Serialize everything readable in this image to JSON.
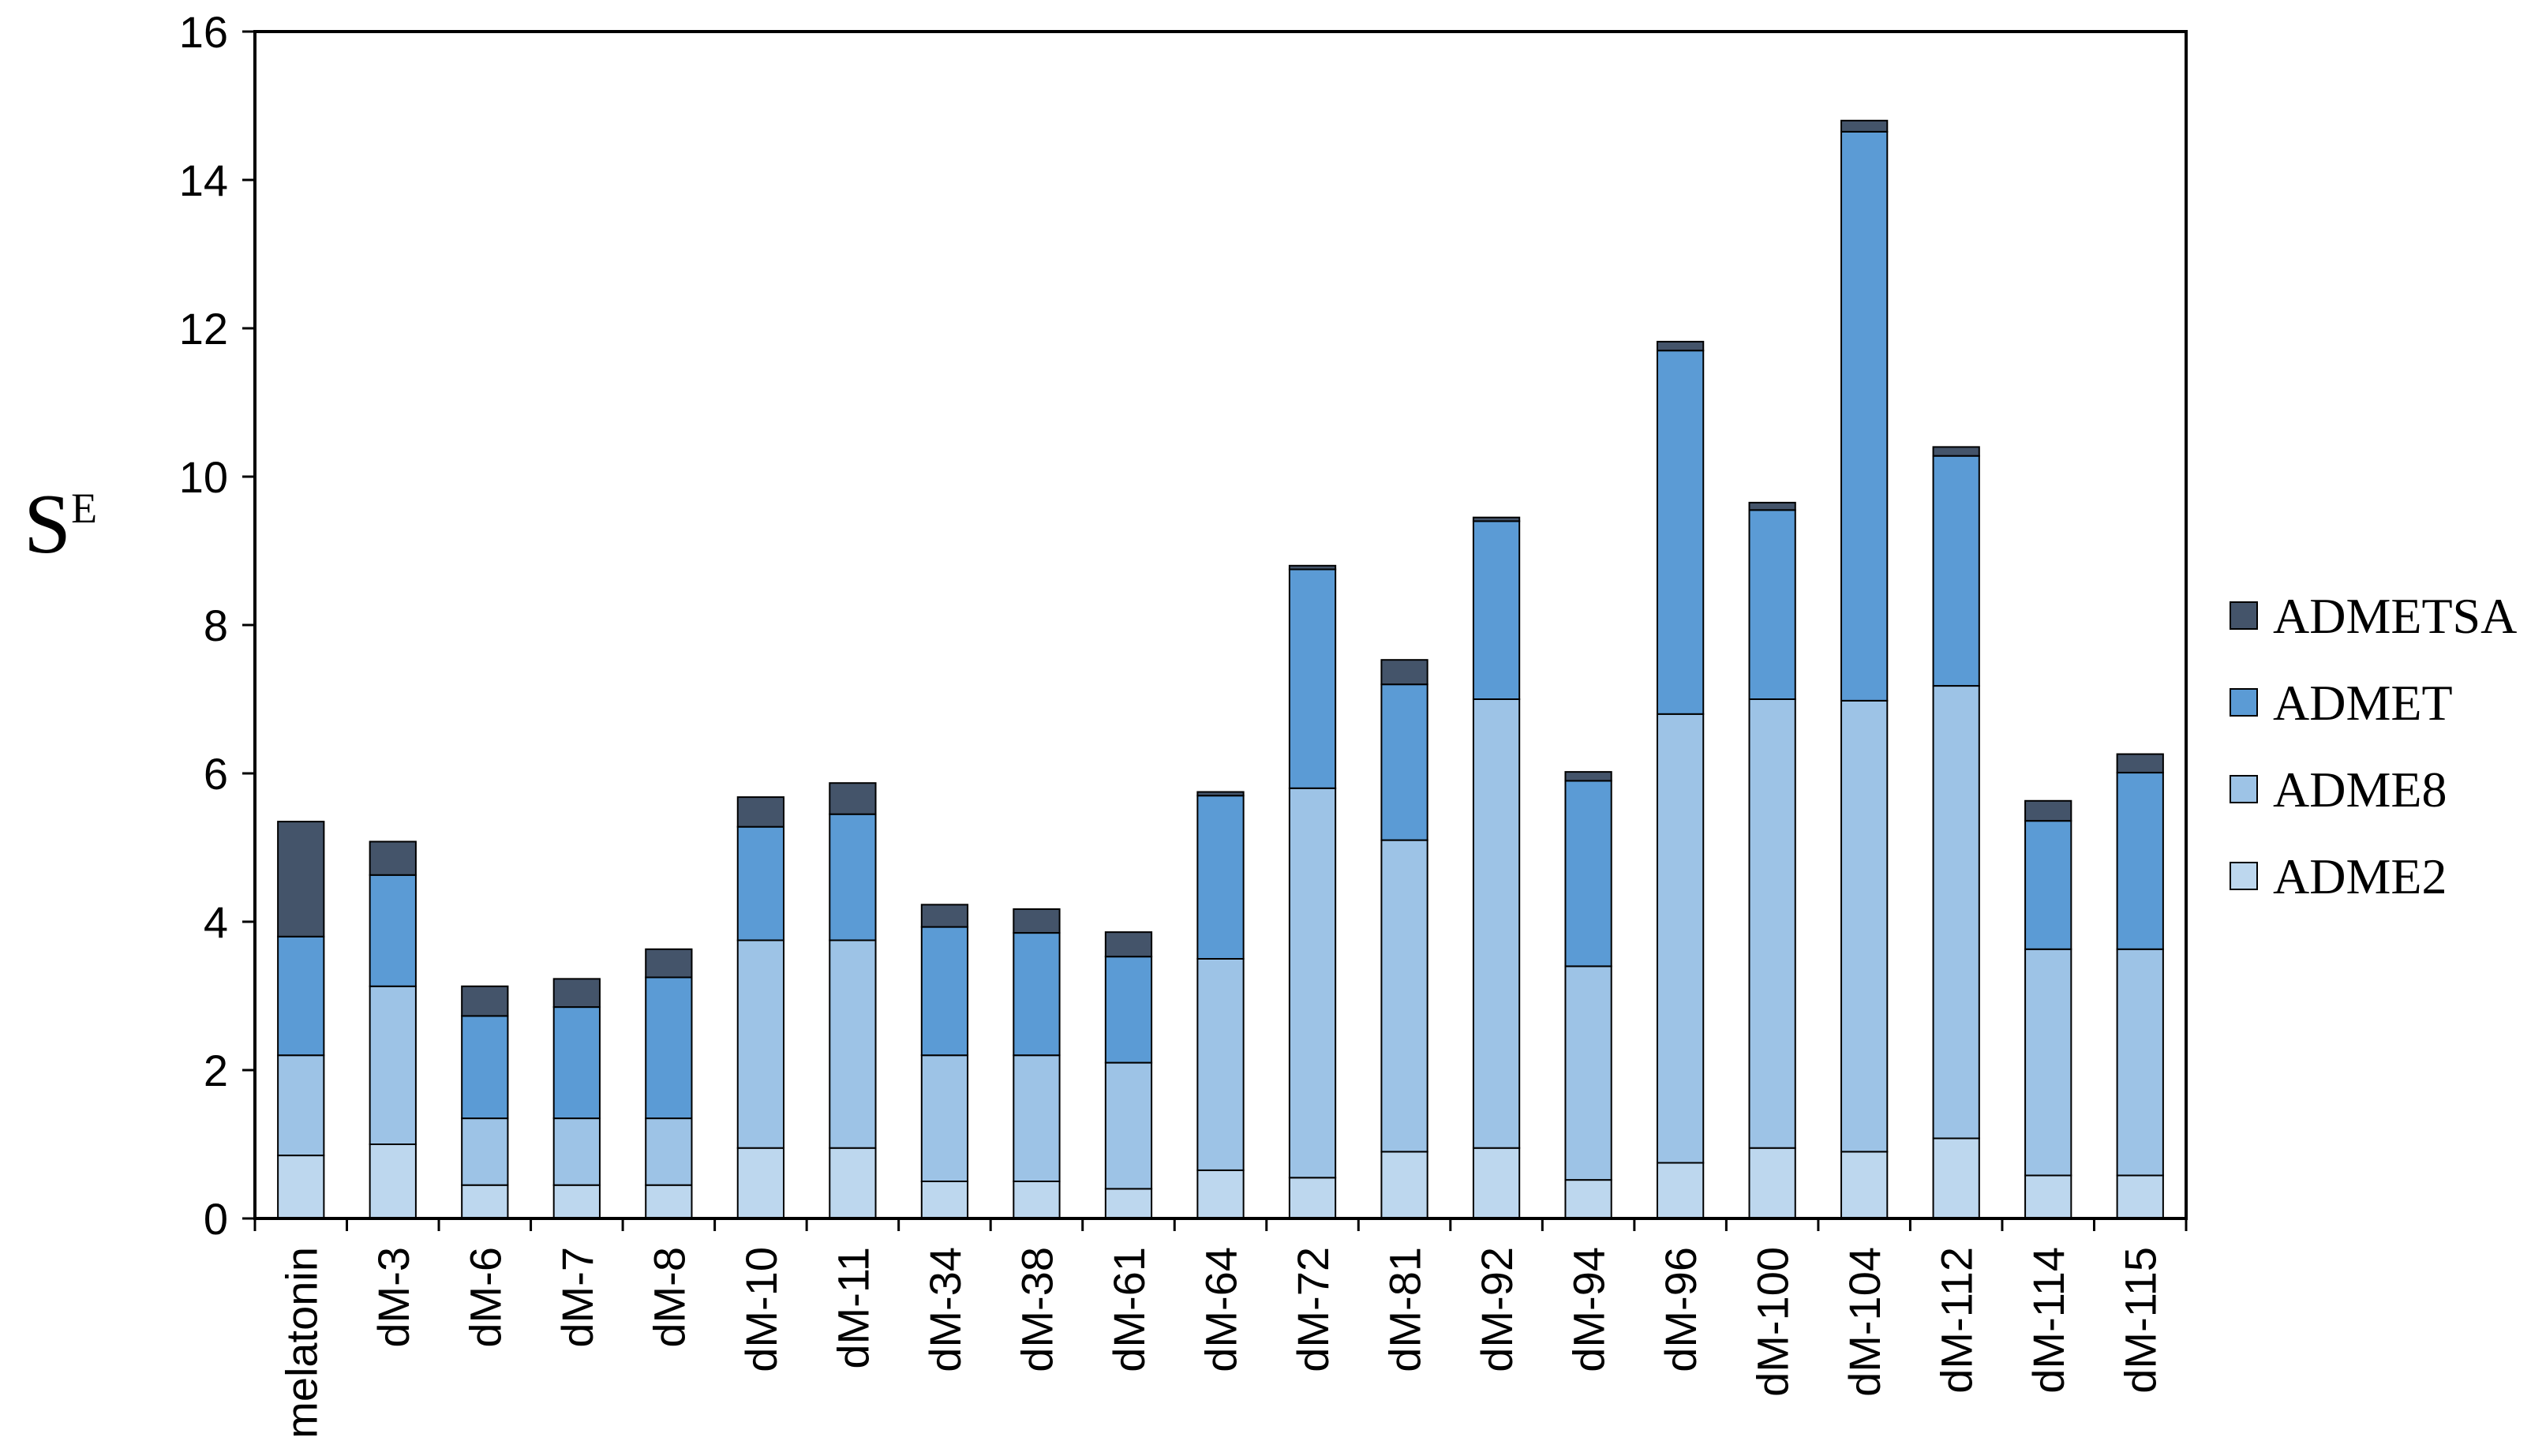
{
  "chart_data": {
    "type": "bar",
    "stacked": true,
    "ylabel": "S",
    "ylabel_superscript": "E",
    "xlabel": "",
    "title": "",
    "ylim": [
      0,
      16
    ],
    "yticks": [
      "0",
      "2",
      "4",
      "6",
      "8",
      "10",
      "12",
      "14",
      "16"
    ],
    "grid": false,
    "legend_position": "right",
    "categories": [
      "melatonin",
      "dM-3",
      "dM-6",
      "dM-7",
      "dM-8",
      "dM-10",
      "dM-11",
      "dM-34",
      "dM-38",
      "dM-61",
      "dM-64",
      "dM-72",
      "dM-81",
      "dM-92",
      "dM-94",
      "dM-96",
      "dM-100",
      "dM-104",
      "dM-112",
      "dM-114",
      "dM-115"
    ],
    "series": [
      {
        "name": "ADME2",
        "color": "#bdd7ee",
        "values": [
          0.85,
          1.0,
          0.45,
          0.45,
          0.45,
          0.95,
          0.95,
          0.5,
          0.5,
          0.4,
          0.65,
          0.55,
          0.9,
          0.95,
          0.52,
          0.75,
          0.95,
          0.9,
          1.08,
          0.58,
          0.58
        ]
      },
      {
        "name": "ADME8",
        "color": "#9dc3e6",
        "values": [
          1.35,
          2.13,
          0.9,
          0.9,
          0.9,
          2.8,
          2.8,
          1.7,
          1.7,
          1.7,
          2.85,
          5.25,
          4.2,
          6.05,
          2.88,
          6.05,
          6.05,
          6.08,
          6.1,
          3.05,
          3.05
        ]
      },
      {
        "name": "ADMET",
        "color": "#5b9bd5",
        "values": [
          1.6,
          1.5,
          1.38,
          1.5,
          1.9,
          1.53,
          1.7,
          1.73,
          1.65,
          1.43,
          2.2,
          2.95,
          2.1,
          2.4,
          2.5,
          4.9,
          2.55,
          7.67,
          3.1,
          1.73,
          2.38
        ]
      },
      {
        "name": "ADMETSA",
        "color": "#44546a",
        "values": [
          1.55,
          0.45,
          0.4,
          0.38,
          0.38,
          0.4,
          0.42,
          0.3,
          0.32,
          0.33,
          0.05,
          0.05,
          0.33,
          0.05,
          0.12,
          0.12,
          0.1,
          0.15,
          0.12,
          0.27,
          0.25
        ]
      }
    ]
  }
}
